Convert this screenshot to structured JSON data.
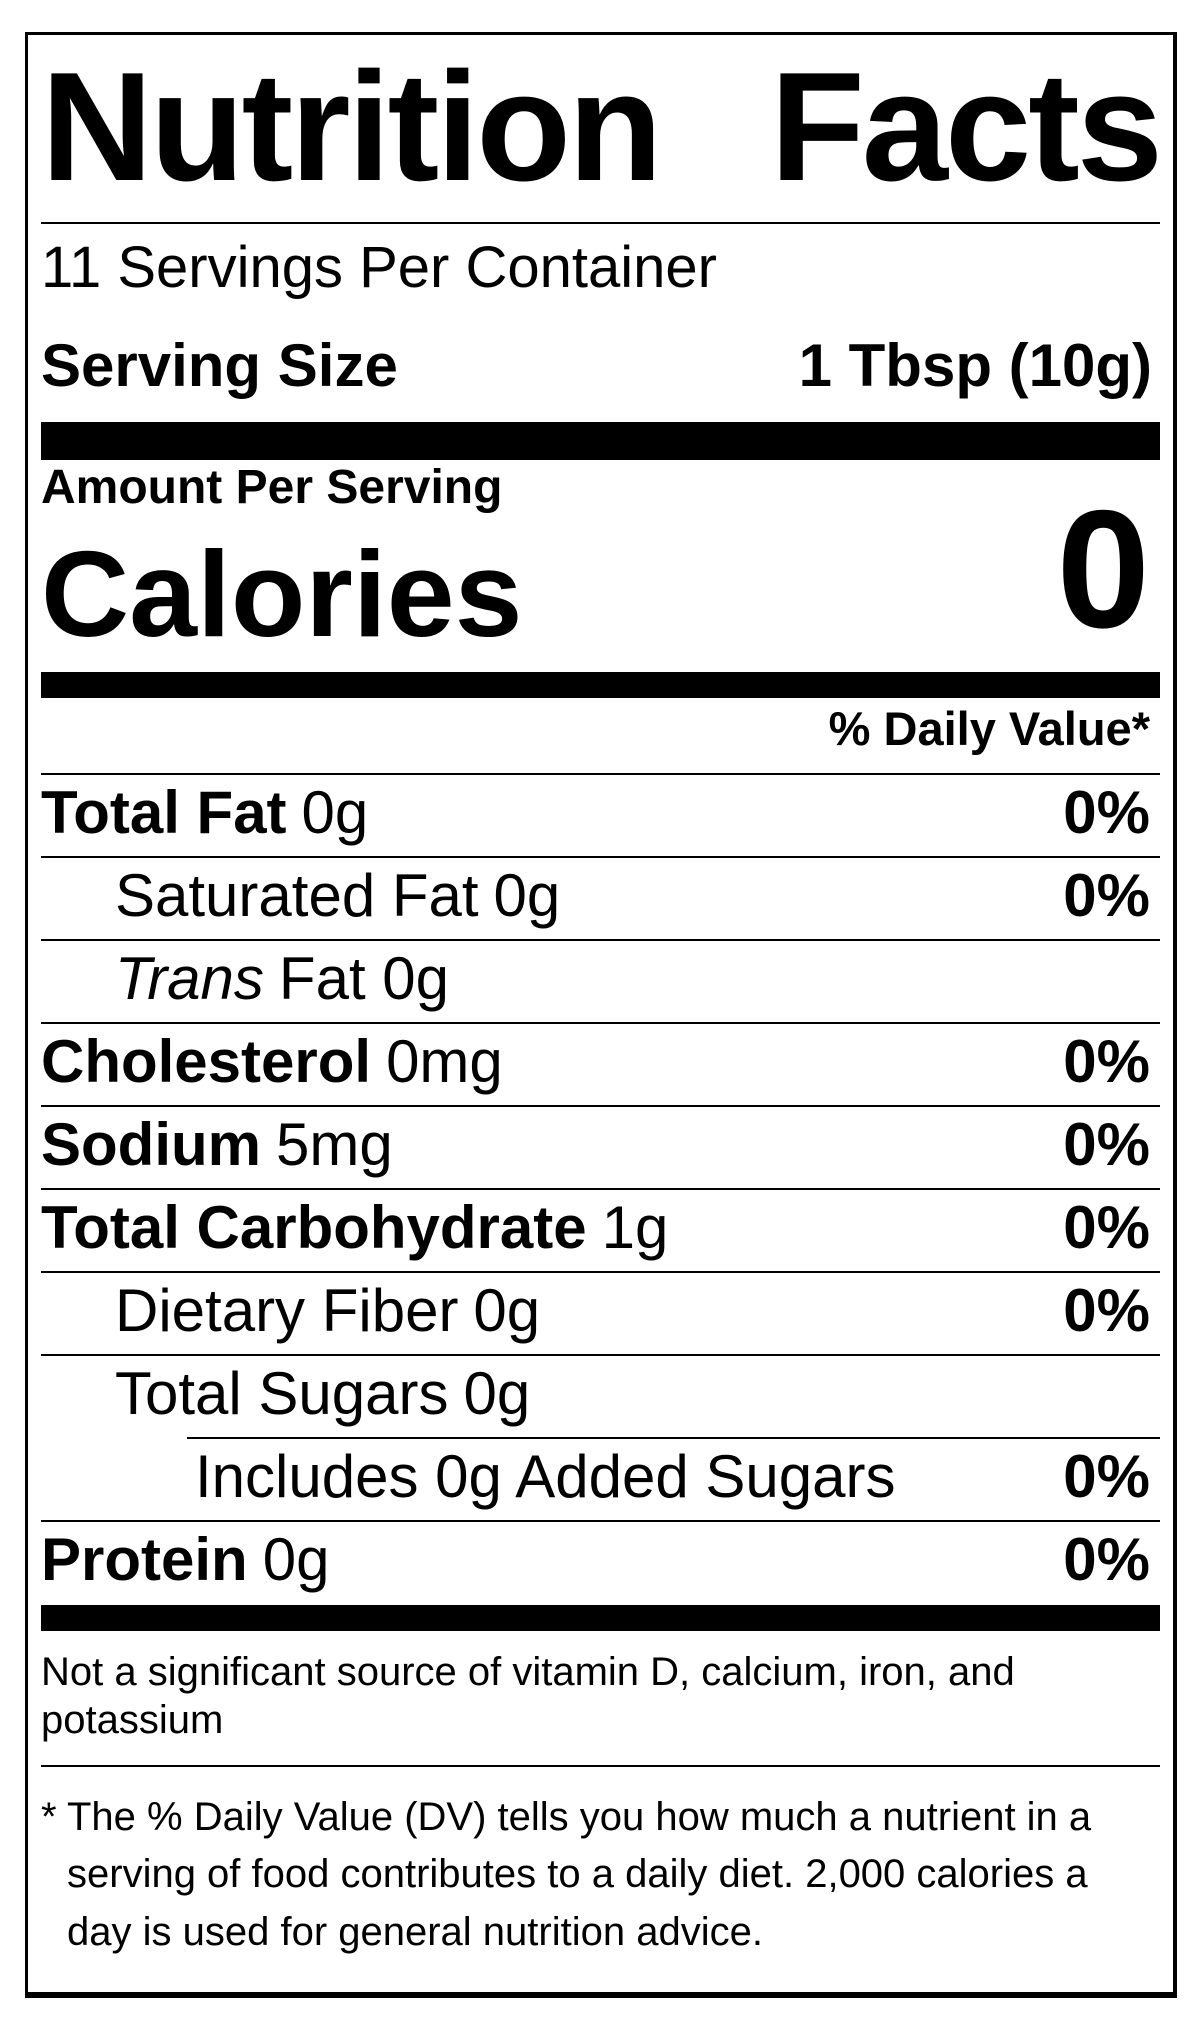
{
  "label": {
    "title_words": [
      "Nutrition",
      "Facts"
    ],
    "servings_per_container": "11 Servings Per Container",
    "serving_size_label": "Serving Size",
    "serving_size_value": "1 Tbsp (10g)",
    "amount_per_serving": "Amount Per Serving",
    "calories_label": "Calories",
    "calories_value": "0",
    "daily_value_header": "% Daily Value*",
    "rows": [
      {
        "name": "Total Fat",
        "amount": "0g",
        "dv": "0%",
        "indent": 0,
        "bold": true,
        "italic": false
      },
      {
        "name": "Saturated Fat",
        "amount": "0g",
        "dv": "0%",
        "indent": 1,
        "bold": false,
        "italic": false
      },
      {
        "name": "Trans",
        "amount": "Fat 0g",
        "dv": "",
        "indent": 1,
        "bold": false,
        "italic": true
      },
      {
        "name": "Cholesterol",
        "amount": "0mg",
        "dv": "0%",
        "indent": 0,
        "bold": true,
        "italic": false
      },
      {
        "name": "Sodium",
        "amount": "5mg",
        "dv": "0%",
        "indent": 0,
        "bold": true,
        "italic": false
      },
      {
        "name": "Total Carbohydrate",
        "amount": "1g",
        "dv": "0%",
        "indent": 0,
        "bold": true,
        "italic": false
      },
      {
        "name": "Dietary Fiber",
        "amount": "0g",
        "dv": "0%",
        "indent": 1,
        "bold": false,
        "italic": false
      },
      {
        "name": "Total Sugars",
        "amount": "0g",
        "dv": "",
        "indent": 1,
        "bold": false,
        "italic": false
      },
      {
        "name": "Includes 0g Added Sugars",
        "amount": "",
        "dv": "0%",
        "indent": 2,
        "bold": false,
        "italic": false
      },
      {
        "name": "Protein",
        "amount": "0g",
        "dv": "0%",
        "indent": 0,
        "bold": true,
        "italic": false
      }
    ],
    "not_significant": "Not a significant source of vitamin D, calcium, iron, and potassium",
    "footnote_marker": "*",
    "footnote_text": "The % Daily Value (DV) tells you how much a nutrient in a serving of food contributes to a daily diet. 2,000 calories a day is used for general nutrition advice."
  },
  "colors": {
    "text": "#000000",
    "background": "#ffffff",
    "rule": "#000000"
  }
}
